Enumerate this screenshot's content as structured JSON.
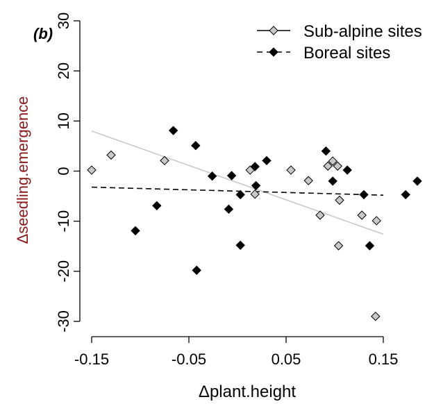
{
  "panel_label": "(b)",
  "chart_data": {
    "type": "scatter",
    "title": "",
    "xlabel": "Δplant.height",
    "ylabel": "Δseedling.emergence",
    "xlim": [
      -0.15,
      0.15
    ],
    "ylim": [
      -30,
      30
    ],
    "x_ticks": [
      -0.15,
      -0.05,
      0.05,
      0.15
    ],
    "x_tick_labels": [
      "-0.15",
      "-0.05",
      "0.05",
      "0.15"
    ],
    "y_ticks": [
      -30,
      -20,
      -10,
      0,
      10,
      20,
      30
    ],
    "y_tick_labels": [
      "-30",
      "-20",
      "-10",
      "0",
      "10",
      "20",
      "30"
    ],
    "grid": false,
    "legend_position": "top-right",
    "series": [
      {
        "name": "Sub-alpine sites",
        "marker": "diamond",
        "fill": "#c8c8c8",
        "line_style": "solid",
        "line_color": "#c8c8c8",
        "points": [
          [
            -0.15,
            0.2
          ],
          [
            -0.13,
            3.2
          ],
          [
            -0.075,
            2.1
          ],
          [
            0.013,
            0.2
          ],
          [
            0.018,
            -4.6
          ],
          [
            0.055,
            0.2
          ],
          [
            0.073,
            -1.9
          ],
          [
            0.085,
            -8.8
          ],
          [
            0.093,
            1.0
          ],
          [
            0.098,
            2.0
          ],
          [
            0.103,
            1.0
          ],
          [
            0.105,
            -5.8
          ],
          [
            0.104,
            -14.9
          ],
          [
            0.128,
            -8.8
          ],
          [
            0.143,
            -9.9
          ],
          [
            0.142,
            -29.0
          ]
        ],
        "trend": [
          [
            -0.15,
            8.0
          ],
          [
            0.15,
            -12.6
          ]
        ]
      },
      {
        "name": "Boreal sites",
        "marker": "diamond",
        "fill": "#000000",
        "line_style": "dashed",
        "line_color": "#000000",
        "points": [
          [
            -0.105,
            -11.9
          ],
          [
            -0.083,
            -6.9
          ],
          [
            -0.066,
            8.1
          ],
          [
            -0.043,
            5.1
          ],
          [
            -0.042,
            -19.8
          ],
          [
            -0.026,
            -1.0
          ],
          [
            -0.009,
            -7.6
          ],
          [
            -0.006,
            -0.9
          ],
          [
            0.003,
            -4.7
          ],
          [
            0.003,
            -14.8
          ],
          [
            0.018,
            0.9
          ],
          [
            0.019,
            -2.9
          ],
          [
            0.03,
            2.1
          ],
          [
            0.091,
            4.0
          ],
          [
            0.098,
            -2.0
          ],
          [
            0.113,
            0.2
          ],
          [
            0.13,
            -4.7
          ],
          [
            0.136,
            -14.9
          ],
          [
            0.173,
            -4.7
          ],
          [
            0.185,
            -2.0
          ]
        ],
        "trend": [
          [
            -0.15,
            -3.2
          ],
          [
            0.15,
            -4.8
          ]
        ]
      }
    ]
  }
}
